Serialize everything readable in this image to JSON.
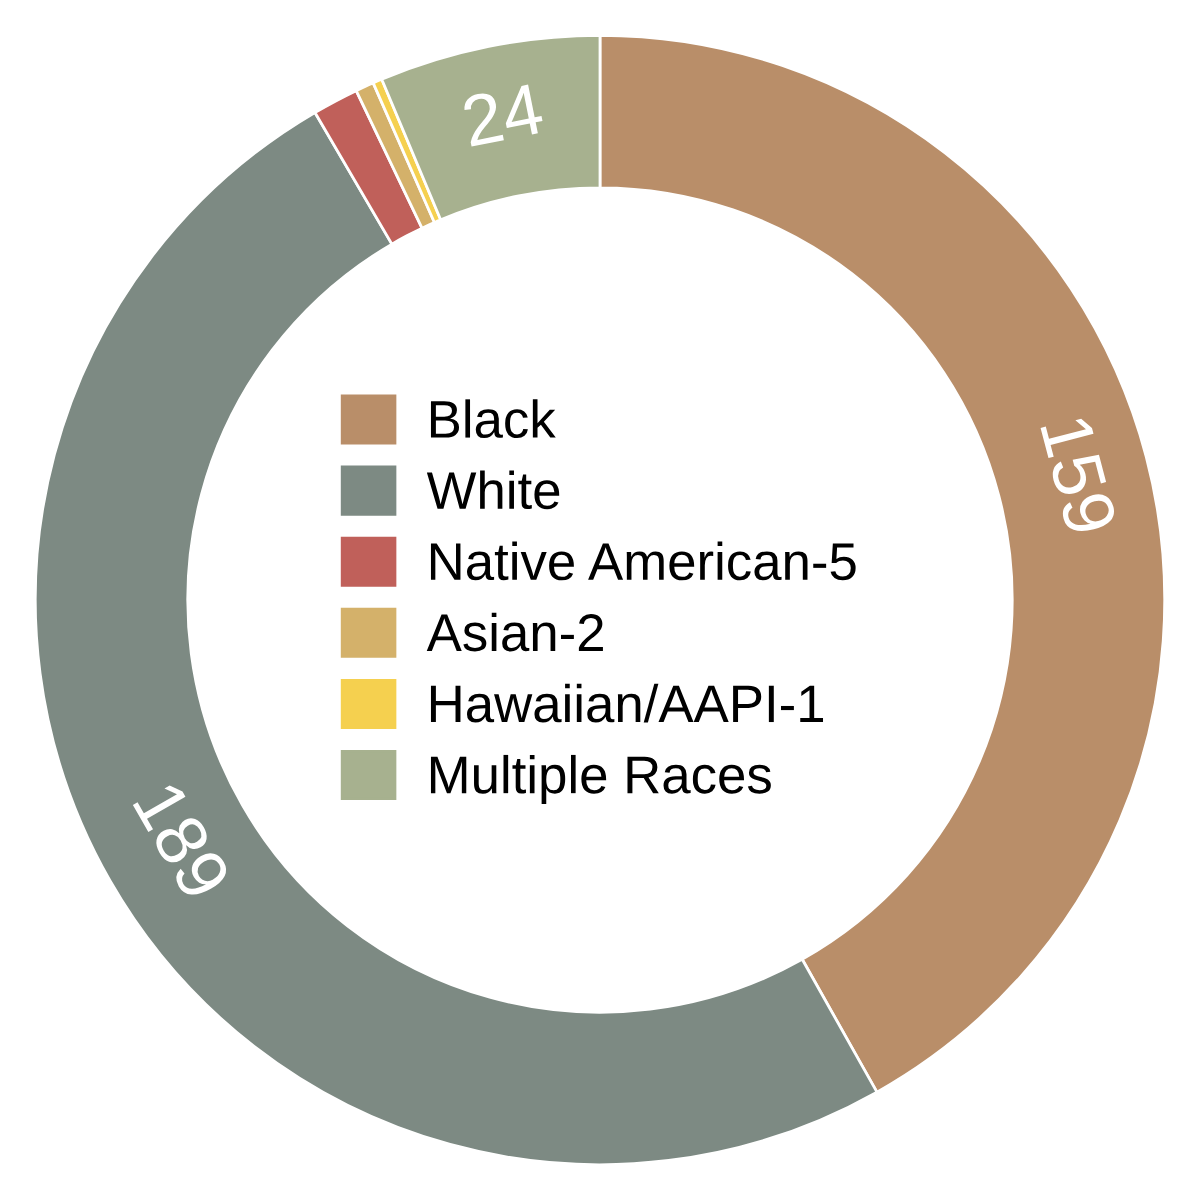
{
  "chart_data": {
    "type": "donut",
    "categories": [
      "Black",
      "White",
      "Native American-5",
      "Asian-2",
      "Hawaiian/AAPI-1",
      "Multiple Races"
    ],
    "values": [
      159,
      189,
      5,
      2,
      1,
      24
    ],
    "colors": [
      "#b98e69",
      "#7d8a83",
      "#c0605a",
      "#d4b16a",
      "#f5d04f",
      "#a7b18f"
    ],
    "value_labels": [
      "159",
      "189",
      null,
      null,
      null,
      "24"
    ],
    "legend": "center"
  }
}
